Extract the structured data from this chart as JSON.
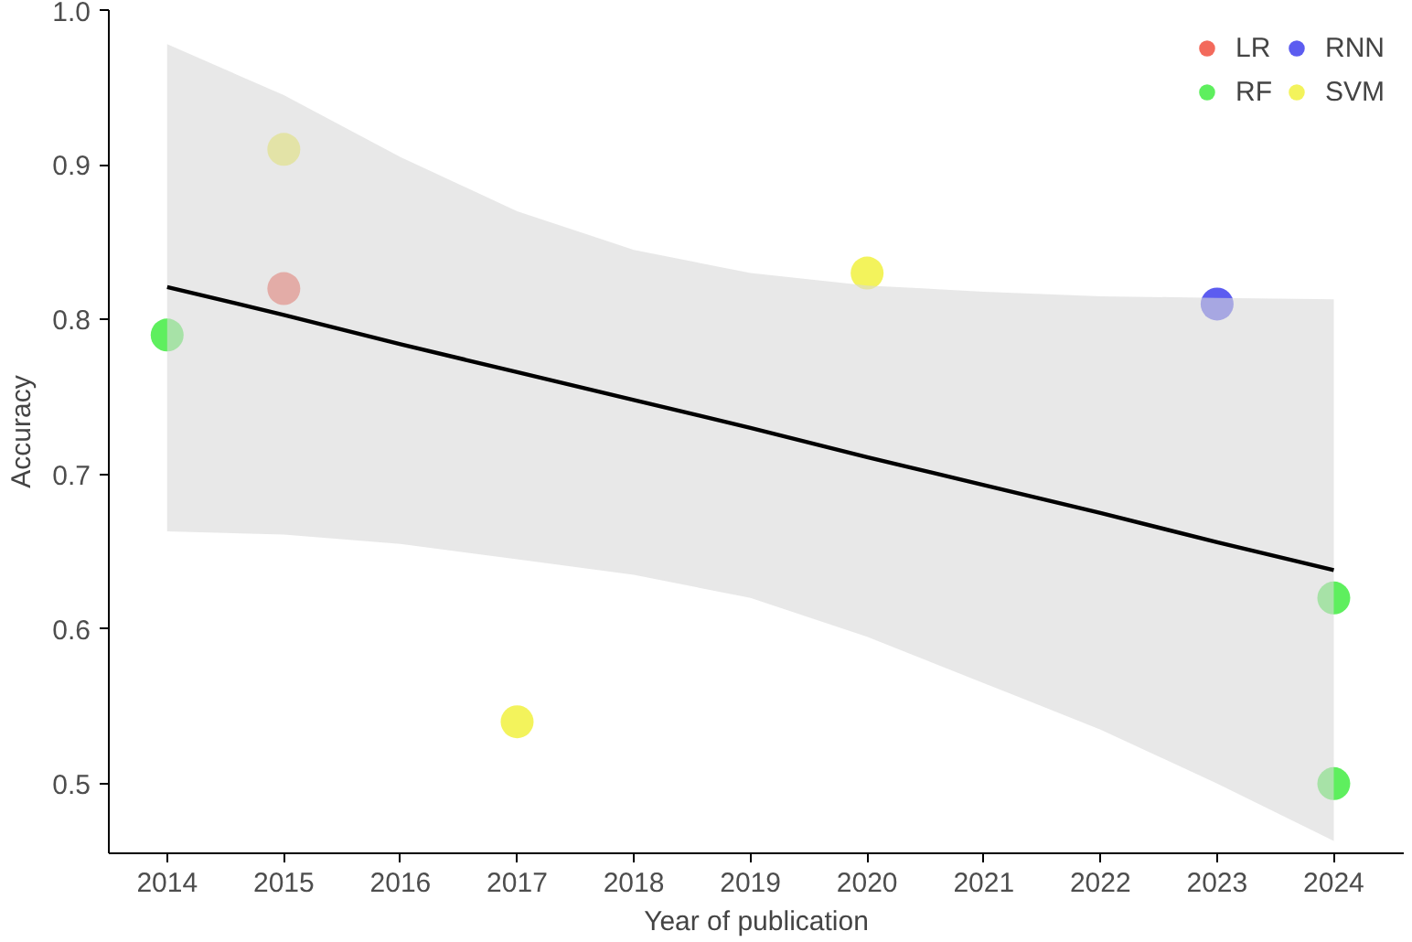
{
  "chart_data": {
    "type": "scatter",
    "xlabel": "Year of publication",
    "ylabel": "Accuracy",
    "xlim": [
      2013.5,
      2024.6
    ],
    "xticks": [
      2014,
      2015,
      2016,
      2017,
      2018,
      2019,
      2020,
      2021,
      2022,
      2023,
      2024
    ],
    "ylim": [
      0.455,
      1.0
    ],
    "yticks": [
      0.5,
      0.6,
      0.7,
      0.8,
      0.9,
      {
        "value": 1.0,
        "label": "1.0"
      }
    ],
    "grid": false,
    "legend": "top right",
    "series": [
      {
        "name": "LR",
        "marker": "circle",
        "color": "#f25a4a",
        "x": [
          2015
        ],
        "values": [
          0.82
        ]
      },
      {
        "name": "RF",
        "marker": "circle",
        "color": "#4ded4d",
        "x": [
          2014,
          2024,
          2024
        ],
        "values": [
          0.79,
          0.62,
          0.5
        ]
      },
      {
        "name": "RNN",
        "marker": "circle",
        "color": "#4a4aee",
        "x": [
          2023
        ],
        "values": [
          0.81
        ]
      },
      {
        "name": "SVM",
        "marker": "circle",
        "color": "#f2f24a",
        "x": [
          2015,
          2017,
          2020
        ],
        "values": [
          0.91,
          0.54,
          0.83
        ]
      },
      {
        "type": "line",
        "color": "#000000",
        "line_style": "solid",
        "x": [
          2014,
          2015,
          2016,
          2017,
          2018,
          2019,
          2020,
          2021,
          2022,
          2023,
          2024
        ],
        "values": [
          0.821,
          0.803,
          0.784,
          0.766,
          0.748,
          0.73,
          0.711,
          0.693,
          0.675,
          0.656,
          0.638
        ],
        "lower": [
          0.663,
          0.661,
          0.655,
          0.645,
          0.635,
          0.62,
          0.595,
          0.565,
          0.535,
          0.5,
          0.463
        ],
        "upper": [
          0.978,
          0.945,
          0.905,
          0.87,
          0.845,
          0.83,
          0.822,
          0.818,
          0.815,
          0.814,
          0.813
        ]
      }
    ]
  }
}
